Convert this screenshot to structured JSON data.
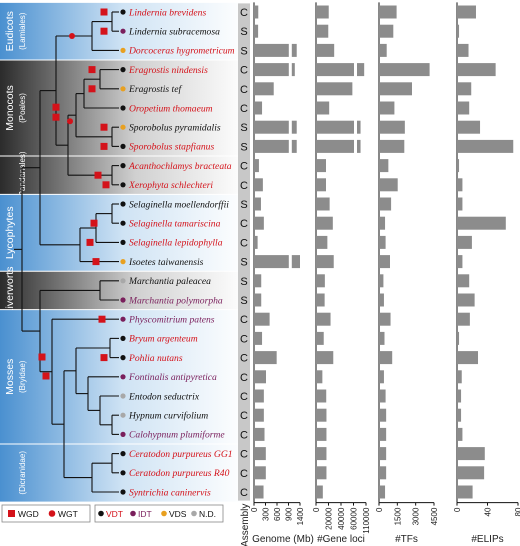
{
  "colors": {
    "red": "#d4121a",
    "black": "#111111",
    "bar": "#8c8c8c",
    "vdt": "#111111",
    "idt": "#7a1f5c",
    "vds": "#e8a020",
    "nd": "#a8a8a8",
    "blue_band": "#4a90d0",
    "dark_band": "#2b2b2b",
    "assembly_col": "#c8c8c8"
  },
  "clades": [
    {
      "name": "Eudicots",
      "sub": "(Lamiales)",
      "color": "blue",
      "rows": [
        0,
        2
      ]
    },
    {
      "name": "Monocots",
      "sub": "(Poales)",
      "color": "dark",
      "rows": [
        3,
        7
      ]
    },
    {
      "name": "",
      "sub": "(Pandanales)",
      "color": "dark",
      "rows": [
        8,
        9
      ]
    },
    {
      "name": "Lycophytes",
      "sub": "",
      "color": "blue",
      "rows": [
        10,
        13
      ]
    },
    {
      "name": "Liverworts",
      "sub": "",
      "color": "dark",
      "rows": [
        14,
        15
      ]
    },
    {
      "name": "Mosses",
      "sub": "(Bryidae)",
      "color": "blue",
      "rows": [
        16,
        22
      ]
    },
    {
      "name": "",
      "sub": "(Dicranidae)",
      "color": "blue",
      "rows": [
        23,
        25
      ]
    }
  ],
  "species": [
    {
      "name": "Lindernia brevidens",
      "red": true,
      "dot": "vdt",
      "assembly": "C"
    },
    {
      "name": "Lindernia subracemosa",
      "red": false,
      "dot": "idt",
      "assembly": "S"
    },
    {
      "name": "Dorcoceras hygrometricum",
      "red": true,
      "dot": "vds",
      "assembly": "S"
    },
    {
      "name": "Eragrostis nindensis",
      "red": true,
      "dot": "vdt",
      "assembly": "C"
    },
    {
      "name": "Eragrostis tef",
      "red": false,
      "dot": "vds",
      "assembly": "C"
    },
    {
      "name": "Oropetium thomaeum",
      "red": true,
      "dot": "vdt",
      "assembly": "C"
    },
    {
      "name": "Sporobolus pyramidalis",
      "red": false,
      "dot": "vds",
      "assembly": "S"
    },
    {
      "name": "Sporobolus stapfianus",
      "red": true,
      "dot": "vdt",
      "assembly": "S"
    },
    {
      "name": "Acanthochlamys bracteata",
      "red": true,
      "dot": "vdt",
      "assembly": "C"
    },
    {
      "name": "Xerophyta schlechteri",
      "red": true,
      "dot": "vdt",
      "assembly": "C"
    },
    {
      "name": "Selaginella moellendorffii",
      "red": false,
      "dot": "vdt",
      "assembly": "S"
    },
    {
      "name": "Selaginella tamariscina",
      "red": true,
      "dot": "vdt",
      "assembly": "C"
    },
    {
      "name": "Selaginella lepidophylla",
      "red": true,
      "dot": "vdt",
      "assembly": "C"
    },
    {
      "name": "Isoetes taiwanensis",
      "red": false,
      "dot": "vds",
      "assembly": "S"
    },
    {
      "name": "Marchantia paleacea",
      "red": false,
      "dot": "nd",
      "assembly": "S"
    },
    {
      "name": "Marchantia polymorpha",
      "red": false,
      "purple": true,
      "dot": "idt",
      "assembly": "S"
    },
    {
      "name": "Physcomitrium patens",
      "red": false,
      "purple": true,
      "dot": "idt",
      "assembly": "C"
    },
    {
      "name": "Bryum argenteum",
      "red": true,
      "dot": "vdt",
      "assembly": "C"
    },
    {
      "name": "Pohlia nutans",
      "red": true,
      "dot": "vdt",
      "assembly": "C"
    },
    {
      "name": "Fontinalis antipyretica",
      "red": false,
      "purple": true,
      "dot": "idt",
      "assembly": "C"
    },
    {
      "name": "Entodon seductrix",
      "red": false,
      "dot": "nd",
      "assembly": "C"
    },
    {
      "name": "Hypnum curvifolium",
      "red": false,
      "dot": "nd",
      "assembly": "C"
    },
    {
      "name": "Calohypnum plumiforme",
      "red": false,
      "purple": true,
      "dot": "idt",
      "assembly": "C"
    },
    {
      "name": "Ceratodon purpureus GG1",
      "red": true,
      "dot": "vdt",
      "assembly": "C"
    },
    {
      "name": "Ceratodon purpureus R40",
      "red": true,
      "dot": "vdt",
      "assembly": "C"
    },
    {
      "name": "Syntrichia caninervis",
      "red": true,
      "dot": "vdt",
      "assembly": "C"
    }
  ],
  "chart_data": [
    {
      "type": "bar",
      "title": "",
      "xlabel": "Genome (Mb)",
      "ticks": [
        "0",
        "300",
        "600",
        "900",
        "1400"
      ],
      "xlim": [
        0,
        1400
      ],
      "axis_break": true,
      "values": [
        130,
        125,
        1300,
        1190,
        600,
        245,
        1300,
        1300,
        150,
        270,
        212,
        300,
        110,
        1400,
        220,
        220,
        475,
        245,
        690,
        365,
        300,
        300,
        320,
        360,
        360,
        290
      ]
    },
    {
      "type": "bar",
      "title": "",
      "xlabel": "#Gene loci",
      "ticks": [
        "0",
        "20000",
        "40000",
        "60000",
        "110000"
      ],
      "xlim": [
        0,
        110000
      ],
      "axis_break": true,
      "values": [
        28000,
        27000,
        40000,
        106000,
        80000,
        29000,
        98000,
        98000,
        22000,
        22000,
        30000,
        37000,
        25000,
        39000,
        19500,
        19000,
        32000,
        17000,
        38000,
        14000,
        22500,
        23000,
        23000,
        23000,
        23000,
        15000
      ]
    },
    {
      "type": "bar",
      "title": "",
      "xlabel": "#TFs",
      "ticks": [
        "0",
        "1500",
        "3000",
        "4500"
      ],
      "xlim": [
        0,
        5000
      ],
      "values": [
        1600,
        1300,
        700,
        4600,
        3000,
        1400,
        2350,
        2300,
        850,
        1700,
        1100,
        550,
        600,
        1000,
        400,
        450,
        1050,
        500,
        1200,
        450,
        600,
        650,
        650,
        650,
        650,
        550
      ]
    },
    {
      "type": "bar",
      "title": "",
      "xlabel": "#ELIPs",
      "ticks": [
        "0",
        "40",
        "80"
      ],
      "xlim": [
        0,
        90
      ],
      "values": [
        28,
        3,
        17,
        57,
        21,
        18,
        34,
        83,
        3,
        8,
        8,
        72,
        22,
        8,
        18,
        26,
        19,
        3,
        31,
        7,
        6,
        6,
        8,
        41,
        40,
        23
      ]
    }
  ],
  "assembly_label": "Assembly",
  "legend": {
    "events": [
      {
        "label": "WGD",
        "shape": "square"
      },
      {
        "label": "WGT",
        "shape": "circle"
      }
    ],
    "types": [
      {
        "label": "VDT",
        "key": "vdt"
      },
      {
        "label": "IDT",
        "key": "idt"
      },
      {
        "label": "VDS",
        "key": "vds"
      },
      {
        "label": "N.D.",
        "key": "nd"
      }
    ]
  }
}
